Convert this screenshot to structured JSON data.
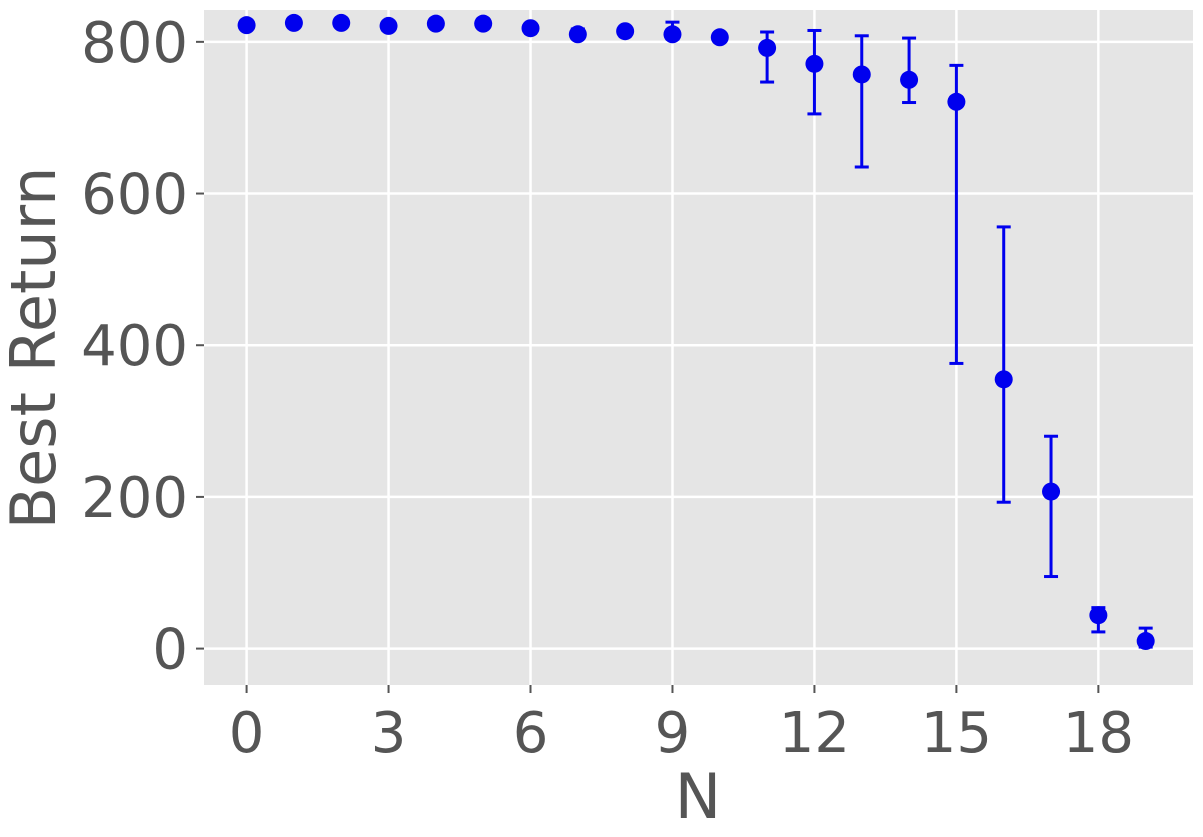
{
  "chart_data": {
    "type": "scatter",
    "title": "",
    "xlabel": "N",
    "ylabel": "Best Return",
    "xlim": [
      -0.9,
      20
    ],
    "ylim": [
      -48,
      842
    ],
    "xticks": [
      0,
      3,
      6,
      9,
      12,
      15,
      18
    ],
    "yticks": [
      0,
      200,
      400,
      600,
      800
    ],
    "grid": true,
    "legend": "none",
    "colors": {
      "marker": "#0000ee",
      "background": "#e5e5e5",
      "grid": "#ffffff",
      "text": "#555555"
    },
    "series": [
      {
        "x": [
          0,
          1,
          2,
          3,
          4,
          5,
          6,
          7,
          8,
          9,
          10,
          11,
          12,
          13,
          14,
          15,
          16,
          17,
          18,
          19
        ],
        "y": [
          822,
          825,
          825,
          821,
          824,
          824,
          818,
          810,
          814,
          810,
          806,
          792,
          771,
          757,
          750,
          721,
          355,
          207,
          44,
          10
        ],
        "ylow": [
          822,
          825,
          825,
          821,
          824,
          824,
          818,
          805,
          814,
          804,
          806,
          747,
          705,
          635,
          720,
          376,
          193,
          95,
          22,
          2
        ],
        "yhigh": [
          822,
          825,
          825,
          821,
          824,
          824,
          818,
          817,
          814,
          826,
          806,
          813,
          815,
          808,
          805,
          769,
          556,
          280,
          54,
          27
        ]
      }
    ]
  }
}
